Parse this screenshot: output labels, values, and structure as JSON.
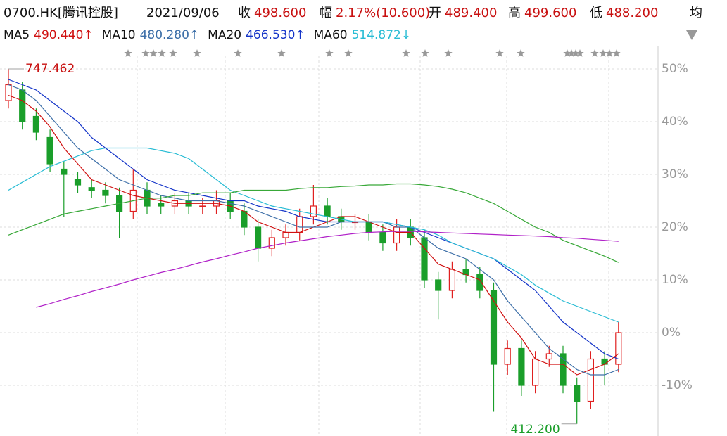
{
  "header": {
    "symbol": "0700.HK[腾讯控股]",
    "date": "2021/09/06",
    "fields": [
      {
        "label": "收",
        "value": "498.600"
      },
      {
        "label": "幅",
        "value": "2.17%(10.600)"
      },
      {
        "label": "开",
        "value": "489.400"
      },
      {
        "label": "高",
        "value": "499.600"
      },
      {
        "label": "低",
        "value": "488.200"
      },
      {
        "label": "均"
      }
    ]
  },
  "chart_data": {
    "type": "candlestick",
    "open": [
      44,
      46,
      41,
      37,
      31,
      29,
      27.5,
      27,
      26,
      23,
      27,
      24.5,
      24,
      25,
      24,
      24,
      25,
      23,
      20,
      16,
      18,
      19,
      22,
      24,
      22,
      21,
      21,
      19,
      17,
      20,
      18,
      10,
      8,
      12,
      11,
      8,
      -6,
      -3,
      -10,
      -5,
      -4,
      -10,
      -13,
      -5,
      -6
    ],
    "high": [
      50,
      47.5,
      42.5,
      38.5,
      32.5,
      30.5,
      29,
      28.5,
      27.5,
      31,
      28.5,
      26,
      26.5,
      26.5,
      25.5,
      27,
      26.5,
      24.5,
      21.5,
      19.5,
      20.5,
      23.5,
      28,
      25.5,
      23.5,
      22.5,
      22.5,
      20.5,
      21.5,
      21.5,
      19.5,
      11.5,
      13.5,
      14,
      12.5,
      9.5,
      -1.5,
      -1.5,
      -3.5,
      -2.5,
      -2.5,
      -8.5,
      -3.5,
      -3.5,
      2
    ],
    "low": [
      42.5,
      38.5,
      36.5,
      30.5,
      22,
      26.5,
      25.5,
      24.5,
      18,
      21.5,
      22.5,
      22.5,
      22.5,
      22.5,
      22.5,
      22.5,
      21.5,
      18.5,
      13.5,
      14.5,
      16.5,
      17.5,
      20.5,
      20.5,
      19.5,
      19.5,
      17.5,
      15.5,
      15.5,
      16.5,
      8.5,
      2.5,
      6.5,
      9.5,
      6.5,
      -15,
      -8,
      -12,
      -11.5,
      -6.5,
      -11.5,
      -17.3,
      -14.5,
      -10,
      -7.5
    ],
    "close": [
      47,
      40,
      38,
      32,
      30,
      28,
      27,
      26,
      23,
      27,
      24,
      24,
      25,
      24,
      24,
      25,
      23,
      20,
      16,
      18,
      19,
      22,
      24,
      22,
      21,
      21,
      19,
      17,
      20,
      18,
      10,
      8,
      12,
      11,
      8,
      -6,
      -3,
      -10,
      -5,
      -4,
      -10,
      -13,
      -5,
      -6,
      0
    ],
    "up_color": "#e02020",
    "down_color": "#1a9e2a",
    "series": [
      {
        "name": "MA5",
        "legend_value": "490.440↑",
        "color": "#d01010",
        "values": [
          45,
          44,
          42,
          39,
          35,
          32,
          29,
          28,
          27,
          26,
          25.5,
          25,
          24.5,
          24.5,
          24.5,
          24.5,
          24,
          23,
          21,
          20,
          19,
          19,
          20,
          21,
          22,
          22,
          21,
          20,
          19,
          19,
          16,
          13,
          12,
          11,
          10,
          6,
          2,
          -1,
          -5,
          -6,
          -6,
          -8,
          -7,
          -6,
          -4
        ]
      },
      {
        "name": "MA10",
        "legend_value": "480.280↑",
        "color": "#3d6fa8",
        "values": [
          47,
          46,
          44,
          41,
          38,
          35,
          33,
          31,
          29,
          28,
          27,
          26,
          25.5,
          25,
          25,
          25,
          24.5,
          24,
          23,
          22,
          21,
          20,
          20,
          20,
          21,
          21,
          21,
          21,
          20,
          20,
          18,
          16,
          15,
          14,
          12,
          10,
          6,
          3,
          0,
          -3,
          -5,
          -7,
          -8,
          -8,
          -7
        ]
      },
      {
        "name": "MA20",
        "legend_value": "466.530↑",
        "color": "#1434c8",
        "values": [
          48,
          47,
          46,
          44,
          42,
          40,
          37,
          35,
          33,
          31,
          29,
          28,
          27,
          26.5,
          26,
          25.5,
          25,
          25,
          24,
          23.5,
          23,
          22,
          21.5,
          21,
          21,
          21,
          21,
          21,
          20.5,
          20,
          19,
          18,
          17,
          16,
          15,
          14,
          12,
          10,
          8,
          5,
          2,
          0,
          -2,
          -4,
          -5
        ]
      },
      {
        "name": "MA60",
        "legend_value": "514.872↓",
        "color": "#28bcd4",
        "values": [
          27,
          28.5,
          30,
          31.5,
          32.5,
          33.5,
          34.5,
          35,
          35,
          35,
          35,
          34.5,
          34,
          33,
          31,
          29,
          27,
          26,
          25,
          24,
          23.5,
          23,
          22.5,
          22,
          21.5,
          21,
          21,
          21,
          20.5,
          20,
          19.5,
          18.5,
          17,
          16,
          15,
          14,
          12.5,
          11,
          9,
          7.5,
          6,
          5,
          4,
          3,
          2
        ]
      },
      {
        "color": "#38a838",
        "values": [
          18.5,
          19.5,
          20.5,
          21.5,
          22.5,
          23,
          23.5,
          24,
          24.5,
          25,
          25.5,
          25.5,
          26,
          26,
          26.5,
          26.5,
          26.5,
          27,
          27,
          27,
          27,
          27.3,
          27.5,
          27.5,
          27.7,
          27.8,
          28,
          28,
          28.2,
          28.2,
          28,
          27.7,
          27.2,
          26.5,
          25.5,
          24.5,
          23,
          21.5,
          20,
          19,
          17.5,
          16.5,
          15.5,
          14.5,
          13.3
        ]
      },
      {
        "color": "#b020c8",
        "values": [
          null,
          null,
          4.8,
          5.5,
          6.3,
          7,
          7.8,
          8.5,
          9.2,
          10,
          10.7,
          11.4,
          12,
          12.7,
          13.4,
          14,
          14.7,
          15.3,
          16,
          16.5,
          17,
          17.4,
          17.8,
          18.2,
          18.5,
          18.8,
          19,
          19.1,
          19.2,
          19.2,
          19.1,
          19,
          18.9,
          18.8,
          18.7,
          18.6,
          18.5,
          18.4,
          18.3,
          18.2,
          18,
          17.9,
          17.7,
          17.5,
          17.3
        ]
      }
    ],
    "ylim": [
      -19.6,
      52.4
    ],
    "yticks": [
      {
        "value": -10,
        "label": "-10%"
      },
      {
        "value": 0,
        "label": "0%"
      },
      {
        "value": 10,
        "label": "10%"
      },
      {
        "value": 20,
        "label": "20%"
      },
      {
        "value": 30,
        "label": "30%"
      },
      {
        "value": 40,
        "label": "40%"
      },
      {
        "value": 50,
        "label": "50%"
      }
    ],
    "grid": true,
    "annotations": [
      {
        "text": "747.462",
        "index": 0
      },
      {
        "text": "412.200",
        "index": 41
      }
    ]
  }
}
